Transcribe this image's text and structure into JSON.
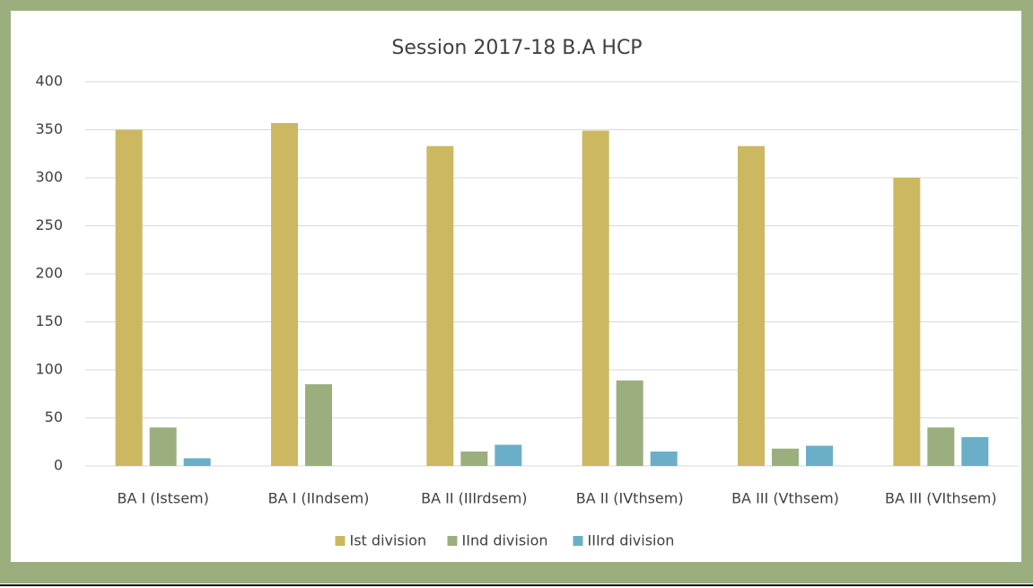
{
  "chart_data": {
    "type": "bar",
    "title": "Session 2017-18 B.A HCP",
    "categories": [
      "BA I (Istsem)",
      "BA I (IIndsem)",
      "BA II (IIIrdsem)",
      "BA II (IVthsem)",
      "BA III (Vthsem)",
      "BA III (VIthsem)"
    ],
    "series": [
      {
        "name": "Ist division",
        "color": "#cdb862",
        "values": [
          350,
          357,
          333,
          349,
          333,
          300
        ]
      },
      {
        "name": "IInd division",
        "color": "#9baf7e",
        "values": [
          40,
          85,
          15,
          89,
          18,
          40
        ]
      },
      {
        "name": "IIIrd division",
        "color": "#6aafc7",
        "values": [
          8,
          0,
          22,
          15,
          21,
          30
        ]
      }
    ],
    "ylim": [
      0,
      400
    ],
    "yticks": [
      0,
      50,
      100,
      150,
      200,
      250,
      300,
      350,
      400
    ],
    "grid": true,
    "legend": "bottom"
  }
}
